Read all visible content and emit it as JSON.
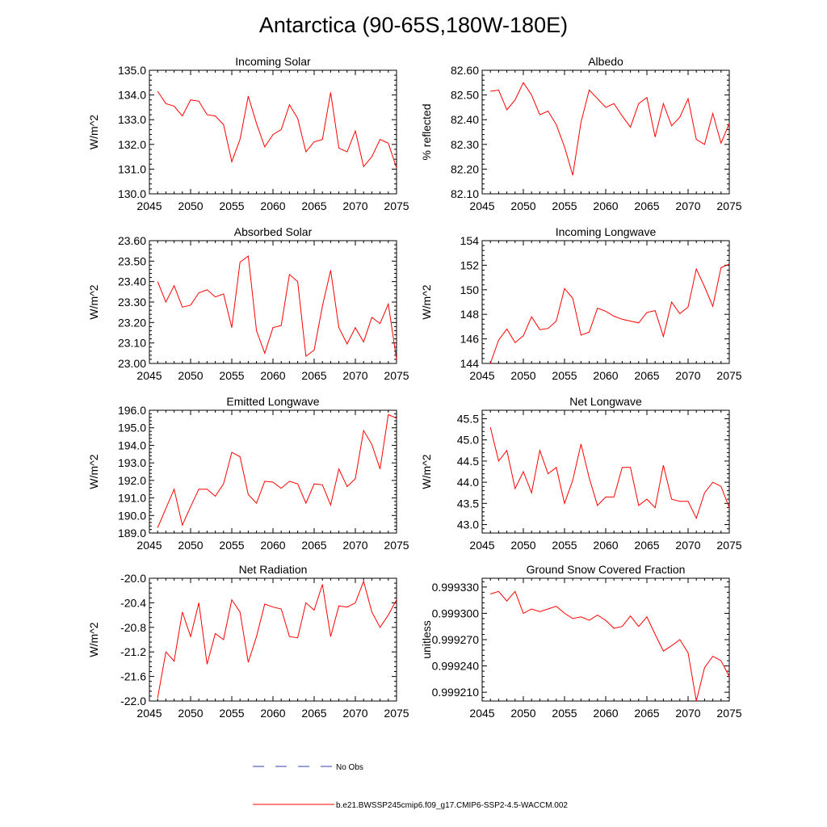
{
  "figure": {
    "title": "Antarctica (90-65S,180W-180E)",
    "series_color": "#ff0000",
    "obs_color": "#3b3bb3"
  },
  "legend": {
    "obs_label": "No Obs",
    "model_label": "b.e21.BWSSP245cmip6.f09_g17.CMIP6-SSP2-4.5-WACCM.002"
  },
  "chart_data": [
    {
      "type": "line",
      "title": "Incoming Solar",
      "xlabel": "",
      "ylabel": "W/m^2",
      "xlim": [
        2045,
        2075
      ],
      "ylim": [
        130.0,
        135.0
      ],
      "xticks": [
        "2045",
        "2050",
        "2055",
        "2060",
        "2065",
        "2070",
        "2075"
      ],
      "yticks": [
        "130.0",
        "131.0",
        "132.0",
        "133.0",
        "134.0",
        "135.0"
      ],
      "x": [
        2046,
        2047,
        2048,
        2049,
        2050,
        2051,
        2052,
        2053,
        2054,
        2055,
        2056,
        2057,
        2058,
        2059,
        2060,
        2061,
        2062,
        2063,
        2064,
        2065,
        2066,
        2067,
        2068,
        2069,
        2070,
        2071,
        2072,
        2073,
        2074,
        2075
      ],
      "series": [
        {
          "name": "b.e21.BWSSP245cmip6.f09_g17.CMIP6-SSP2-4.5-WACCM.002",
          "values": [
            134.15,
            133.65,
            133.55,
            133.15,
            133.8,
            133.75,
            133.2,
            133.15,
            132.8,
            131.3,
            132.2,
            133.95,
            132.85,
            131.9,
            132.4,
            132.6,
            133.6,
            133.05,
            131.7,
            132.1,
            132.2,
            134.1,
            131.85,
            131.7,
            132.55,
            131.1,
            131.5,
            132.2,
            132.05,
            131.05
          ]
        }
      ]
    },
    {
      "type": "line",
      "title": "Albedo",
      "xlabel": "",
      "ylabel": "% reflected",
      "xlim": [
        2045,
        2075
      ],
      "ylim": [
        82.1,
        82.6
      ],
      "xticks": [
        "2045",
        "2050",
        "2055",
        "2060",
        "2065",
        "2070",
        "2075"
      ],
      "yticks": [
        "82.10",
        "82.20",
        "82.30",
        "82.40",
        "82.50",
        "82.60"
      ],
      "x": [
        2046,
        2047,
        2048,
        2049,
        2050,
        2051,
        2052,
        2053,
        2054,
        2055,
        2056,
        2057,
        2058,
        2059,
        2060,
        2061,
        2062,
        2063,
        2064,
        2065,
        2066,
        2067,
        2068,
        2069,
        2070,
        2071,
        2072,
        2073,
        2074,
        2075
      ],
      "series": [
        {
          "name": "b.e21.BWSSP245cmip6.f09_g17.CMIP6-SSP2-4.5-WACCM.002",
          "values": [
            82.515,
            82.52,
            82.44,
            82.48,
            82.55,
            82.5,
            82.42,
            82.435,
            82.38,
            82.29,
            82.175,
            82.39,
            82.52,
            82.485,
            82.45,
            82.465,
            82.415,
            82.37,
            82.465,
            82.49,
            82.33,
            82.465,
            82.375,
            82.41,
            82.485,
            82.32,
            82.3,
            82.425,
            82.305,
            82.385
          ]
        }
      ]
    },
    {
      "type": "line",
      "title": "Absorbed Solar",
      "xlabel": "",
      "ylabel": "W/m^2",
      "xlim": [
        2045,
        2075
      ],
      "ylim": [
        23.0,
        23.6
      ],
      "xticks": [
        "2045",
        "2050",
        "2055",
        "2060",
        "2065",
        "2070",
        "2075"
      ],
      "yticks": [
        "23.00",
        "23.10",
        "23.20",
        "23.30",
        "23.40",
        "23.50",
        "23.60"
      ],
      "x": [
        2046,
        2047,
        2048,
        2049,
        2050,
        2051,
        2052,
        2053,
        2054,
        2055,
        2056,
        2057,
        2058,
        2059,
        2060,
        2061,
        2062,
        2063,
        2064,
        2065,
        2066,
        2067,
        2068,
        2069,
        2070,
        2071,
        2072,
        2073,
        2074,
        2075
      ],
      "series": [
        {
          "name": "b.e21.BWSSP245cmip6.f09_g17.CMIP6-SSP2-4.5-WACCM.002",
          "values": [
            23.4,
            23.3,
            23.38,
            23.275,
            23.285,
            23.345,
            23.36,
            23.325,
            23.34,
            23.175,
            23.495,
            23.525,
            23.16,
            23.05,
            23.175,
            23.185,
            23.435,
            23.4,
            23.035,
            23.065,
            23.28,
            23.455,
            23.175,
            23.095,
            23.175,
            23.105,
            23.225,
            23.195,
            23.29,
            23.02
          ]
        }
      ]
    },
    {
      "type": "line",
      "title": "Incoming Longwave",
      "xlabel": "",
      "ylabel": "W/m^2",
      "xlim": [
        2045,
        2075
      ],
      "ylim": [
        144,
        154
      ],
      "xticks": [
        "2045",
        "2050",
        "2055",
        "2060",
        "2065",
        "2070",
        "2075"
      ],
      "yticks": [
        "144",
        "146",
        "148",
        "150",
        "152",
        "154"
      ],
      "x": [
        2046,
        2047,
        2048,
        2049,
        2050,
        2051,
        2052,
        2053,
        2054,
        2055,
        2056,
        2057,
        2058,
        2059,
        2060,
        2061,
        2062,
        2063,
        2064,
        2065,
        2066,
        2067,
        2068,
        2069,
        2070,
        2071,
        2072,
        2073,
        2074,
        2075
      ],
      "series": [
        {
          "name": "b.e21.BWSSP245cmip6.f09_g17.CMIP6-SSP2-4.5-WACCM.002",
          "values": [
            144.0,
            145.9,
            146.8,
            145.7,
            146.25,
            147.8,
            146.75,
            146.85,
            147.45,
            150.1,
            149.3,
            146.3,
            146.55,
            148.5,
            148.25,
            147.85,
            147.6,
            147.45,
            147.3,
            148.15,
            148.3,
            146.2,
            149.0,
            148.05,
            148.6,
            151.7,
            150.25,
            148.65,
            151.8,
            152.1
          ]
        }
      ]
    },
    {
      "type": "line",
      "title": "Emitted Longwave",
      "xlabel": "",
      "ylabel": "W/m^2",
      "xlim": [
        2045,
        2075
      ],
      "ylim": [
        189.0,
        196.0
      ],
      "xticks": [
        "2045",
        "2050",
        "2055",
        "2060",
        "2065",
        "2070",
        "2075"
      ],
      "yticks": [
        "189.0",
        "190.0",
        "191.0",
        "192.0",
        "193.0",
        "194.0",
        "195.0",
        "196.0"
      ],
      "x": [
        2046,
        2047,
        2048,
        2049,
        2050,
        2051,
        2052,
        2053,
        2054,
        2055,
        2056,
        2057,
        2058,
        2059,
        2060,
        2061,
        2062,
        2063,
        2064,
        2065,
        2066,
        2067,
        2068,
        2069,
        2070,
        2071,
        2072,
        2073,
        2074,
        2075
      ],
      "series": [
        {
          "name": "b.e21.BWSSP245cmip6.f09_g17.CMIP6-SSP2-4.5-WACCM.002",
          "values": [
            189.3,
            190.4,
            191.5,
            189.45,
            190.5,
            191.5,
            191.5,
            191.1,
            191.8,
            193.6,
            193.35,
            191.2,
            190.7,
            191.95,
            191.9,
            191.55,
            191.95,
            191.8,
            190.7,
            191.8,
            191.75,
            190.6,
            192.65,
            191.65,
            192.1,
            194.85,
            194.05,
            192.65,
            195.75,
            195.55
          ]
        }
      ]
    },
    {
      "type": "line",
      "title": "Net Longwave",
      "xlabel": "",
      "ylabel": "W/m^2",
      "xlim": [
        2045,
        2075
      ],
      "ylim": [
        42.8,
        45.7
      ],
      "xticks": [
        "2045",
        "2050",
        "2055",
        "2060",
        "2065",
        "2070",
        "2075"
      ],
      "yticks": [
        "43.0",
        "43.5",
        "44.0",
        "44.5",
        "45.0",
        "45.5"
      ],
      "x": [
        2046,
        2047,
        2048,
        2049,
        2050,
        2051,
        2052,
        2053,
        2054,
        2055,
        2056,
        2057,
        2058,
        2059,
        2060,
        2061,
        2062,
        2063,
        2064,
        2065,
        2066,
        2067,
        2068,
        2069,
        2070,
        2071,
        2072,
        2073,
        2074,
        2075
      ],
      "series": [
        {
          "name": "b.e21.BWSSP245cmip6.f09_g17.CMIP6-SSP2-4.5-WACCM.002",
          "values": [
            45.3,
            44.5,
            44.75,
            43.85,
            44.25,
            43.75,
            44.75,
            44.2,
            44.35,
            43.5,
            44.05,
            44.9,
            44.1,
            43.45,
            43.65,
            43.65,
            44.35,
            44.35,
            43.45,
            43.6,
            43.4,
            44.4,
            43.6,
            43.55,
            43.55,
            43.15,
            43.75,
            44.0,
            43.9,
            43.4
          ]
        }
      ]
    },
    {
      "type": "line",
      "title": "Net Radiation",
      "xlabel": "",
      "ylabel": "W/m^2",
      "xlim": [
        2045,
        2075
      ],
      "ylim": [
        -22.0,
        -20.0
      ],
      "xticks": [
        "2045",
        "2050",
        "2055",
        "2060",
        "2065",
        "2070",
        "2075"
      ],
      "yticks": [
        "-22.0",
        "-21.6",
        "-21.2",
        "-20.8",
        "-20.4",
        "-20.0"
      ],
      "x": [
        2046,
        2047,
        2048,
        2049,
        2050,
        2051,
        2052,
        2053,
        2054,
        2055,
        2056,
        2057,
        2058,
        2059,
        2060,
        2061,
        2062,
        2063,
        2064,
        2065,
        2066,
        2067,
        2068,
        2069,
        2070,
        2071,
        2072,
        2073,
        2074,
        2075
      ],
      "series": [
        {
          "name": "b.e21.BWSSP245cmip6.f09_g17.CMIP6-SSP2-4.5-WACCM.002",
          "values": [
            -21.95,
            -21.2,
            -21.35,
            -20.55,
            -20.95,
            -20.4,
            -21.4,
            -20.9,
            -21.0,
            -20.35,
            -20.55,
            -21.37,
            -20.95,
            -20.42,
            -20.47,
            -20.5,
            -20.95,
            -20.97,
            -20.4,
            -20.52,
            -20.1,
            -20.95,
            -20.45,
            -20.47,
            -20.4,
            -20.05,
            -20.55,
            -20.8,
            -20.6,
            -20.35
          ]
        }
      ]
    },
    {
      "type": "line",
      "title": "Ground Snow Covered Fraction",
      "xlabel": "",
      "ylabel": "unitless",
      "xlim": [
        2045,
        2075
      ],
      "ylim": [
        0.9992,
        0.99934
      ],
      "xticks": [
        "2045",
        "2050",
        "2055",
        "2060",
        "2065",
        "2070",
        "2075"
      ],
      "yticks": [
        "0.999210",
        "0.999240",
        "0.999270",
        "0.999300",
        "0.999330"
      ],
      "x": [
        2046,
        2047,
        2048,
        2049,
        2050,
        2051,
        2052,
        2053,
        2054,
        2055,
        2056,
        2057,
        2058,
        2059,
        2060,
        2061,
        2062,
        2063,
        2064,
        2065,
        2066,
        2067,
        2068,
        2069,
        2070,
        2071,
        2072,
        2073,
        2074,
        2075
      ],
      "series": [
        {
          "name": "b.e21.BWSSP245cmip6.f09_g17.CMIP6-SSP2-4.5-WACCM.002",
          "values": [
            0.999322,
            0.999325,
            0.999314,
            0.999325,
            0.9993,
            0.999305,
            0.999302,
            0.999305,
            0.999308,
            0.9993,
            0.999294,
            0.999296,
            0.999292,
            0.999298,
            0.999292,
            0.999283,
            0.999285,
            0.999297,
            0.999285,
            0.999296,
            0.999276,
            0.999257,
            0.999263,
            0.99927,
            0.999255,
            0.9992,
            0.999238,
            0.999251,
            0.999246,
            0.999228
          ]
        }
      ]
    }
  ]
}
